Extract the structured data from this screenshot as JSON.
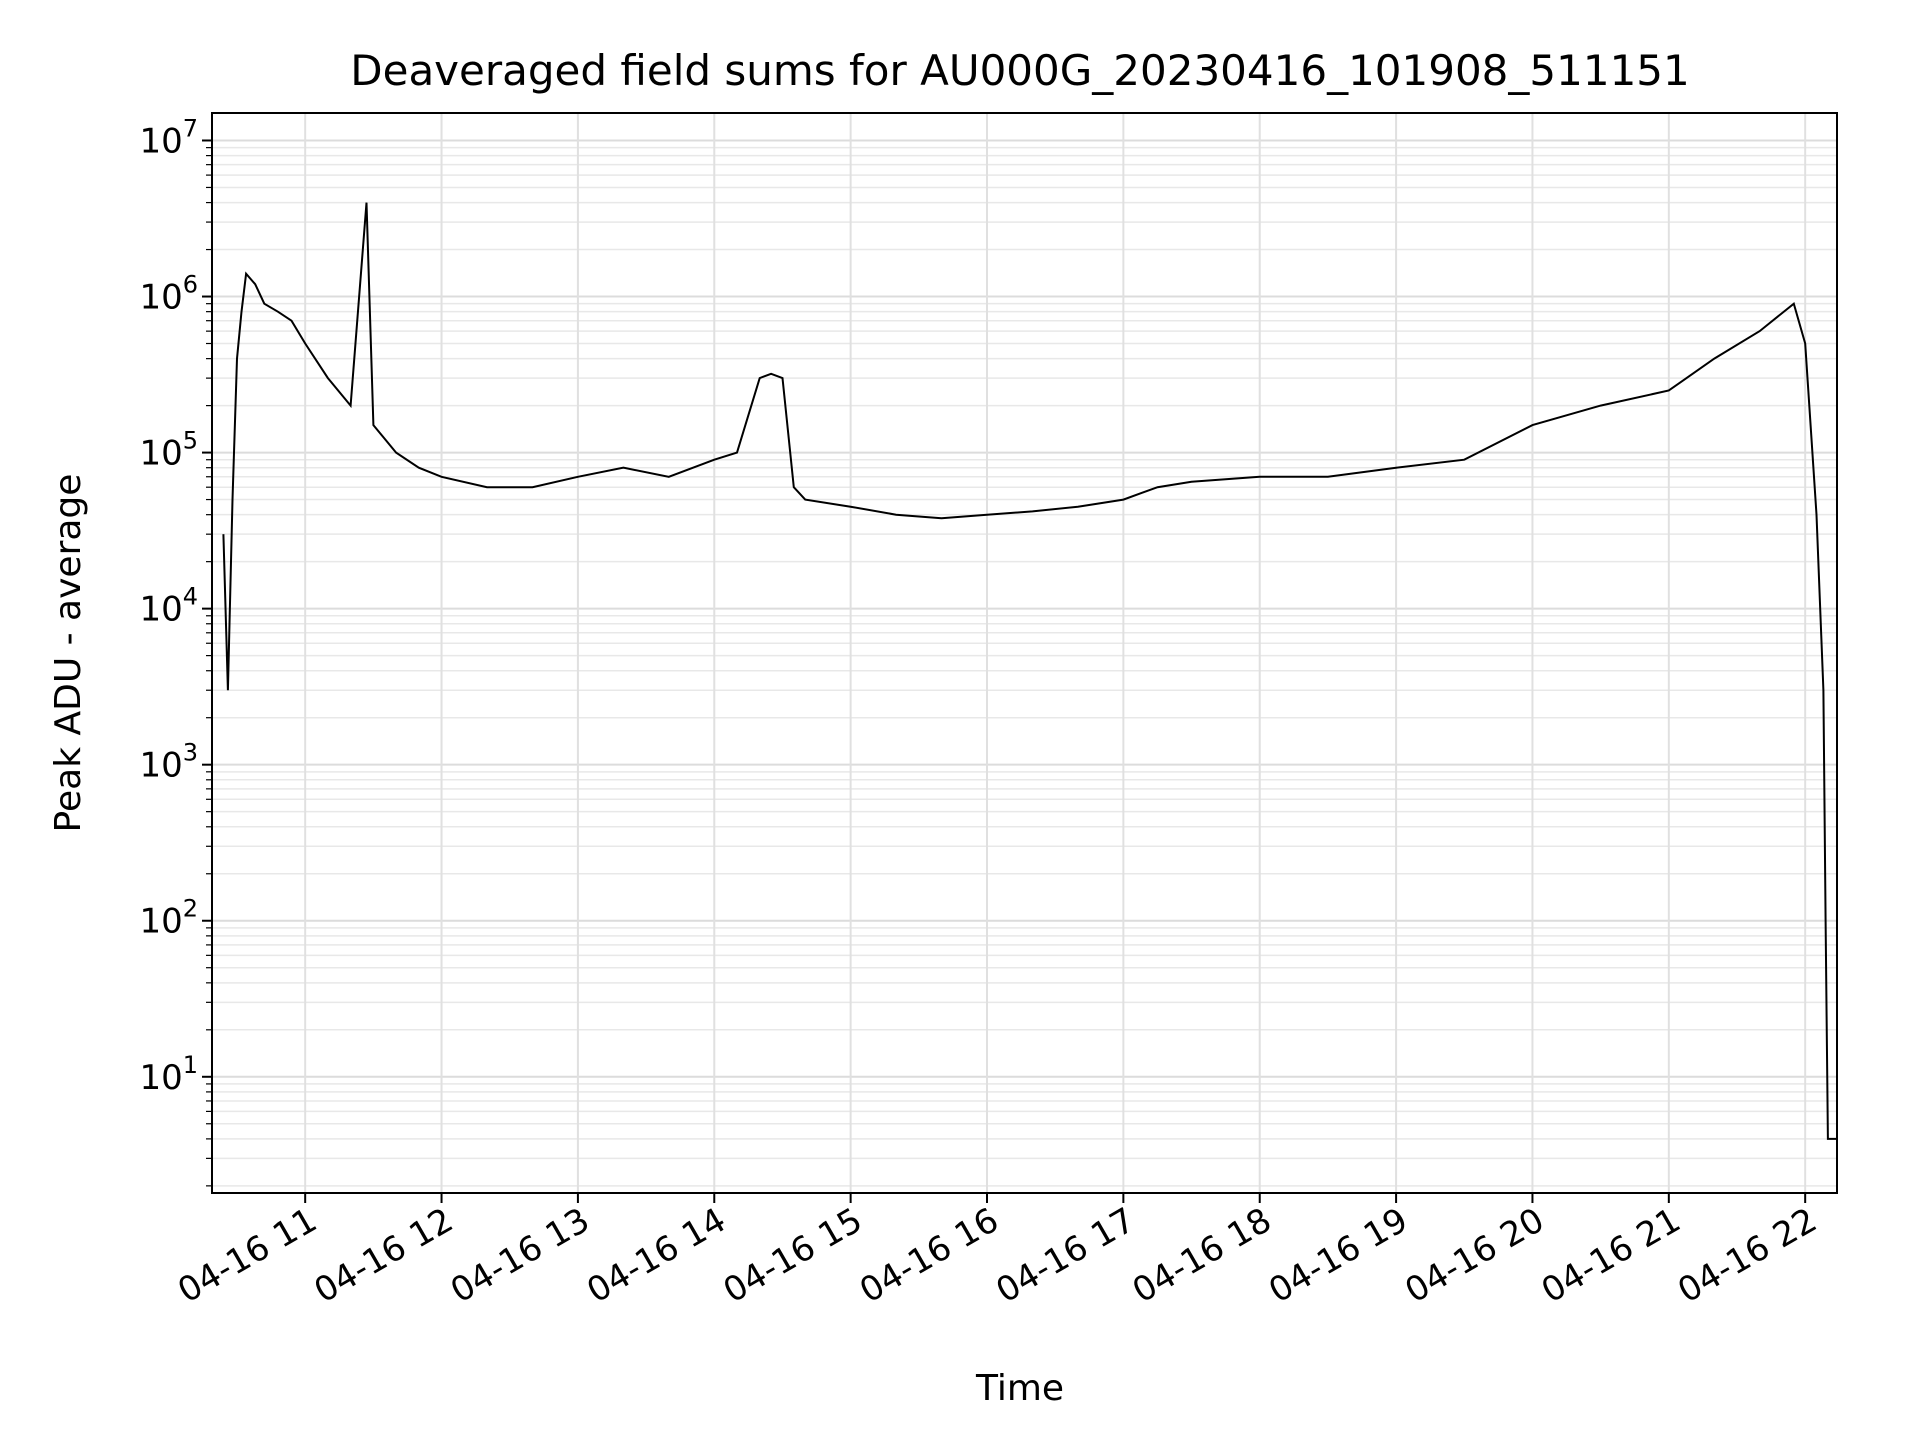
{
  "chart_data": {
    "type": "line",
    "title": "Deaveraged field sums for AU000G_20230416_101908_511151",
    "xlabel": "Time",
    "ylabel": "Peak ADU - average",
    "yscale": "log",
    "ylim": [
      1.8,
      15000000
    ],
    "xlim": [
      "2023-04-16 10:19",
      "2023-04-16 22:14"
    ],
    "grid": true,
    "legend": "none",
    "x_ticks": [
      {
        "time": "2023-04-16 11:00",
        "label": "04-16 11"
      },
      {
        "time": "2023-04-16 12:00",
        "label": "04-16 12"
      },
      {
        "time": "2023-04-16 13:00",
        "label": "04-16 13"
      },
      {
        "time": "2023-04-16 14:00",
        "label": "04-16 14"
      },
      {
        "time": "2023-04-16 15:00",
        "label": "04-16 15"
      },
      {
        "time": "2023-04-16 16:00",
        "label": "04-16 16"
      },
      {
        "time": "2023-04-16 17:00",
        "label": "04-16 17"
      },
      {
        "time": "2023-04-16 18:00",
        "label": "04-16 18"
      },
      {
        "time": "2023-04-16 19:00",
        "label": "04-16 19"
      },
      {
        "time": "2023-04-16 20:00",
        "label": "04-16 20"
      },
      {
        "time": "2023-04-16 21:00",
        "label": "04-16 21"
      },
      {
        "time": "2023-04-16 22:00",
        "label": "04-16 22"
      }
    ],
    "y_ticks": [
      {
        "value": 10,
        "base": "10",
        "exp": "1"
      },
      {
        "value": 100,
        "base": "10",
        "exp": "2"
      },
      {
        "value": 1000,
        "base": "10",
        "exp": "3"
      },
      {
        "value": 10000,
        "base": "10",
        "exp": "4"
      },
      {
        "value": 100000,
        "base": "10",
        "exp": "5"
      },
      {
        "value": 1000000,
        "base": "10",
        "exp": "6"
      },
      {
        "value": 10000000,
        "base": "10",
        "exp": "7"
      }
    ],
    "series": [
      {
        "color": "#000000",
        "x": [
          "2023-04-16 10:24",
          "2023-04-16 10:26",
          "2023-04-16 10:28",
          "2023-04-16 10:30",
          "2023-04-16 10:32",
          "2023-04-16 10:34",
          "2023-04-16 10:38",
          "2023-04-16 10:42",
          "2023-04-16 10:48",
          "2023-04-16 10:54",
          "2023-04-16 11:00",
          "2023-04-16 11:10",
          "2023-04-16 11:20",
          "2023-04-16 11:27",
          "2023-04-16 11:30",
          "2023-04-16 11:40",
          "2023-04-16 11:50",
          "2023-04-16 12:00",
          "2023-04-16 12:20",
          "2023-04-16 12:40",
          "2023-04-16 13:00",
          "2023-04-16 13:20",
          "2023-04-16 13:40",
          "2023-04-16 14:00",
          "2023-04-16 14:10",
          "2023-04-16 14:20",
          "2023-04-16 14:25",
          "2023-04-16 14:30",
          "2023-04-16 14:35",
          "2023-04-16 14:40",
          "2023-04-16 15:00",
          "2023-04-16 15:20",
          "2023-04-16 15:40",
          "2023-04-16 16:00",
          "2023-04-16 16:20",
          "2023-04-16 16:40",
          "2023-04-16 17:00",
          "2023-04-16 17:15",
          "2023-04-16 17:30",
          "2023-04-16 18:00",
          "2023-04-16 18:30",
          "2023-04-16 19:00",
          "2023-04-16 19:30",
          "2023-04-16 20:00",
          "2023-04-16 20:30",
          "2023-04-16 21:00",
          "2023-04-16 21:20",
          "2023-04-16 21:40",
          "2023-04-16 21:55",
          "2023-04-16 22:00",
          "2023-04-16 22:05",
          "2023-04-16 22:08",
          "2023-04-16 22:09",
          "2023-04-16 22:10",
          "2023-04-16 22:14"
        ],
        "y": [
          30000,
          3000,
          50000,
          400000,
          800000,
          1400000,
          1200000,
          900000,
          800000,
          700000,
          500000,
          300000,
          200000,
          4000000,
          150000,
          100000,
          80000,
          70000,
          60000,
          60000,
          70000,
          80000,
          70000,
          90000,
          100000,
          300000,
          320000,
          300000,
          60000,
          50000,
          45000,
          40000,
          38000,
          40000,
          42000,
          45000,
          50000,
          60000,
          65000,
          70000,
          70000,
          80000,
          90000,
          150000,
          200000,
          250000,
          400000,
          600000,
          900000,
          500000,
          40000,
          3000,
          100,
          4,
          4
        ]
      }
    ]
  }
}
